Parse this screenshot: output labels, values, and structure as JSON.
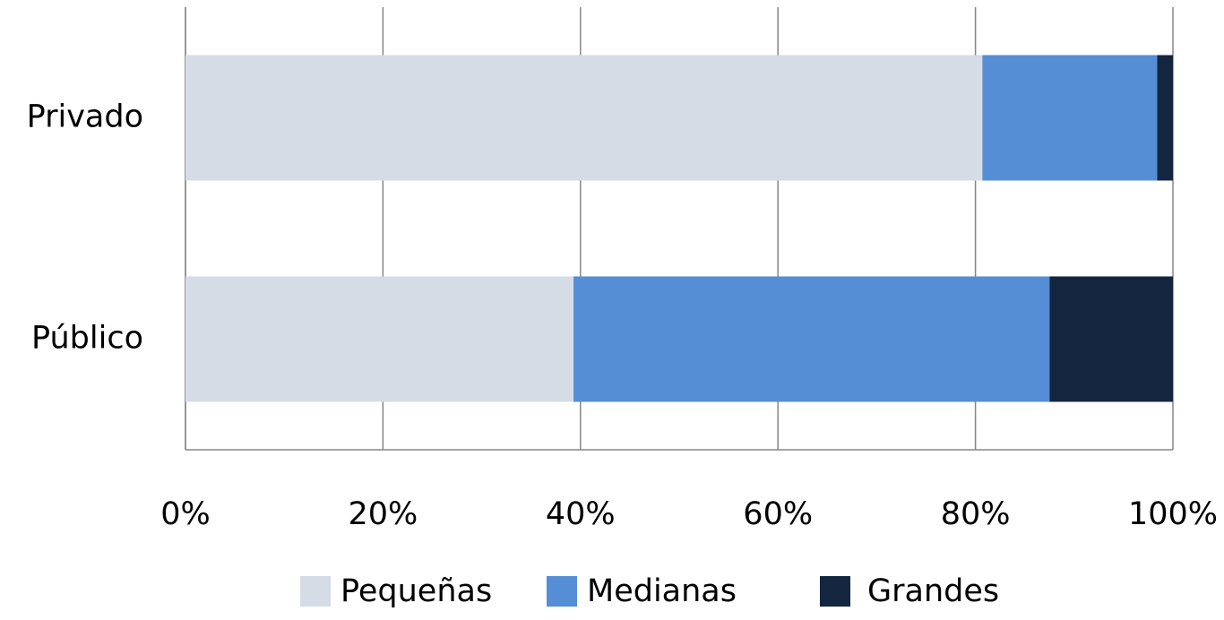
{
  "chart_data": {
    "type": "stacked_bar_horizontal",
    "categories": [
      "Privado",
      "Público"
    ],
    "series": [
      {
        "name": "Pequeñas",
        "color": "#d6dce5",
        "values": [
          80.7,
          39.3
        ]
      },
      {
        "name": "Medianas",
        "color": "#558ed5",
        "values": [
          17.7,
          48.2
        ]
      },
      {
        "name": "Grandes",
        "color": "#14263f",
        "values": [
          1.6,
          12.5
        ]
      }
    ],
    "xlim": [
      0,
      100
    ],
    "xticks": [
      {
        "value": 0,
        "label": "0%"
      },
      {
        "value": 20,
        "label": "20%"
      },
      {
        "value": 40,
        "label": "40%"
      },
      {
        "value": 60,
        "label": "60%"
      },
      {
        "value": 80,
        "label": "80%"
      },
      {
        "value": 100,
        "label": "100%"
      }
    ],
    "grid": true,
    "legend": "bottom"
  }
}
